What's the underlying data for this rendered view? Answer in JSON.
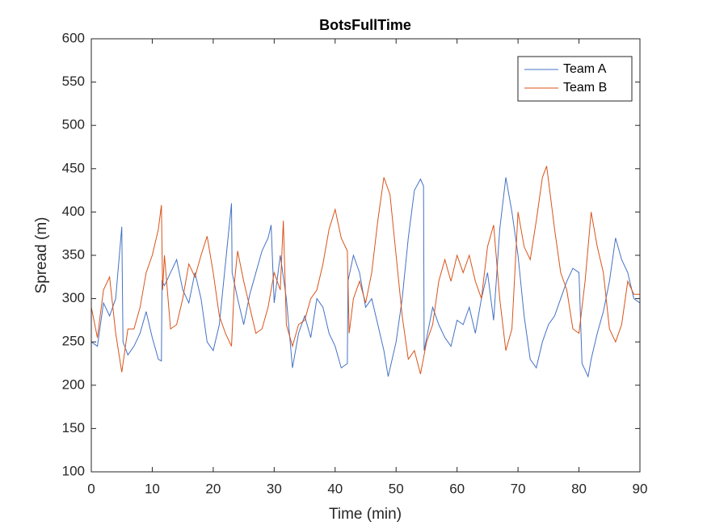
{
  "chart_data": {
    "type": "line",
    "title": "BotsFullTime",
    "x_label": "Time (min)",
    "y_label": "Spread (m)",
    "xlim": [
      0,
      90
    ],
    "xticks": [
      0,
      10,
      20,
      30,
      40,
      50,
      60,
      70,
      80,
      90
    ],
    "ylim": [
      100,
      600
    ],
    "yticks": [
      100,
      150,
      200,
      250,
      300,
      350,
      400,
      450,
      500,
      550,
      600
    ],
    "grid": false,
    "legend_position": "top-right",
    "series": [
      {
        "name": "Team A",
        "color": "#4472c4",
        "x": [
          0,
          1,
          2,
          3,
          4,
          5,
          5.2,
          6,
          7,
          8,
          9,
          10,
          11,
          11.5,
          11.6,
          12,
          13,
          14,
          15,
          16,
          17,
          18,
          19,
          20,
          21,
          22,
          23,
          23.1,
          24,
          25,
          26,
          27,
          28,
          29,
          29.5,
          30,
          31,
          32,
          33,
          34,
          35,
          36,
          37,
          38,
          39,
          40,
          41,
          42,
          42.1,
          43,
          44,
          45,
          46,
          47,
          48,
          48.7,
          50,
          51,
          52,
          53,
          54,
          54.5,
          54.6,
          56,
          57,
          58,
          59,
          60,
          61,
          62,
          63,
          64,
          65,
          66,
          67,
          68,
          69,
          70,
          71,
          72,
          73,
          74,
          75,
          76,
          77,
          78,
          79,
          80,
          80.5,
          81.5,
          82,
          83,
          84,
          85,
          86,
          87,
          88,
          89,
          90
        ],
        "values": [
          250,
          245,
          295,
          280,
          300,
          383,
          250,
          235,
          245,
          260,
          285,
          255,
          230,
          228,
          320,
          315,
          330,
          345,
          310,
          295,
          330,
          300,
          250,
          240,
          270,
          340,
          410,
          330,
          300,
          270,
          305,
          330,
          355,
          370,
          385,
          295,
          350,
          300,
          220,
          260,
          280,
          255,
          300,
          290,
          260,
          245,
          220,
          225,
          320,
          350,
          330,
          290,
          300,
          270,
          240,
          210,
          250,
          300,
          370,
          425,
          438,
          430,
          240,
          290,
          270,
          255,
          245,
          275,
          270,
          290,
          260,
          300,
          330,
          275,
          380,
          440,
          400,
          350,
          280,
          230,
          220,
          250,
          270,
          280,
          300,
          320,
          335,
          330,
          225,
          210,
          230,
          260,
          285,
          320,
          370,
          345,
          330,
          300,
          295
        ]
      },
      {
        "name": "Team B",
        "color": "#d95319",
        "x": [
          0,
          1,
          2,
          3,
          4,
          5,
          6,
          7,
          8,
          9,
          10,
          11,
          11.5,
          11.7,
          12,
          13,
          14,
          15,
          16,
          17,
          18,
          19,
          20,
          21,
          22,
          23,
          23.5,
          24,
          25,
          26,
          27,
          28,
          29,
          30,
          31,
          31.5,
          32,
          33,
          34,
          35,
          36,
          37,
          38,
          39,
          40,
          41,
          42,
          42.3,
          43,
          44,
          45,
          46,
          47,
          48,
          49,
          50,
          51,
          52,
          53,
          54,
          55,
          56,
          57,
          58,
          59,
          60,
          61,
          62,
          63,
          64,
          65,
          66,
          67,
          68,
          69,
          70,
          71,
          72,
          73,
          74,
          74.7,
          76,
          77,
          78,
          79,
          80,
          81,
          82,
          83,
          84,
          85,
          86,
          87,
          88,
          89,
          90
        ],
        "values": [
          290,
          255,
          310,
          325,
          260,
          215,
          265,
          265,
          290,
          330,
          350,
          380,
          408,
          310,
          350,
          265,
          270,
          300,
          340,
          325,
          350,
          372,
          330,
          280,
          260,
          245,
          320,
          355,
          320,
          290,
          260,
          265,
          290,
          330,
          310,
          390,
          270,
          245,
          270,
          275,
          300,
          310,
          340,
          380,
          403,
          370,
          355,
          260,
          300,
          320,
          295,
          330,
          390,
          440,
          420,
          350,
          280,
          230,
          240,
          213,
          250,
          270,
          320,
          345,
          320,
          350,
          330,
          350,
          320,
          300,
          360,
          385,
          300,
          240,
          265,
          400,
          360,
          345,
          390,
          440,
          453,
          380,
          330,
          310,
          265,
          260,
          320,
          400,
          360,
          330,
          265,
          250,
          270,
          320,
          305,
          305
        ]
      }
    ]
  }
}
